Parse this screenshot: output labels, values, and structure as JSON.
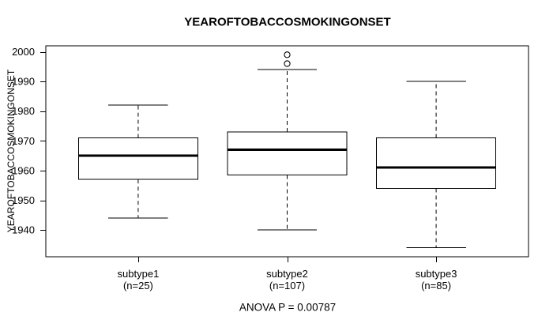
{
  "page": {
    "title": "YEAROFTOBACCOSMOKINGONSET",
    "footer": "ANOVA P = 0.00787"
  },
  "colors": {
    "foreground": "#000000",
    "background": "#ffffff"
  },
  "chart_data": {
    "type": "boxplot",
    "title": "YEAROFTOBACCOSMOKINGONSET",
    "ylabel": "YEAROFTOBACCOSMOKINGONSET",
    "annotation": "ANOVA P = 0.00787",
    "ylim": [
      1931,
      2002
    ],
    "yticks": [
      1940,
      1950,
      1960,
      1970,
      1980,
      1990,
      2000
    ],
    "xlim": [
      0.38,
      3.62
    ],
    "box_width": 0.8,
    "cap_width": 0.4,
    "grid": false,
    "legend": null,
    "groups": [
      {
        "label": "subtype1",
        "sublabel": "(n=25)",
        "n": 25,
        "position": 1,
        "whisker_low": 1944,
        "q1": 1957,
        "median": 1965,
        "q3": 1971,
        "whisker_high": 1982,
        "outliers": []
      },
      {
        "label": "subtype2",
        "sublabel": "(n=107)",
        "n": 107,
        "position": 2,
        "whisker_low": 1940,
        "q1": 1958.5,
        "median": 1967,
        "q3": 1973,
        "whisker_high": 1994,
        "outliers": [
          1996,
          1999
        ]
      },
      {
        "label": "subtype3",
        "sublabel": "(n=85)",
        "n": 85,
        "position": 3,
        "whisker_low": 1934,
        "q1": 1954,
        "median": 1961,
        "q3": 1971,
        "whisker_high": 1990,
        "outliers": []
      }
    ]
  }
}
